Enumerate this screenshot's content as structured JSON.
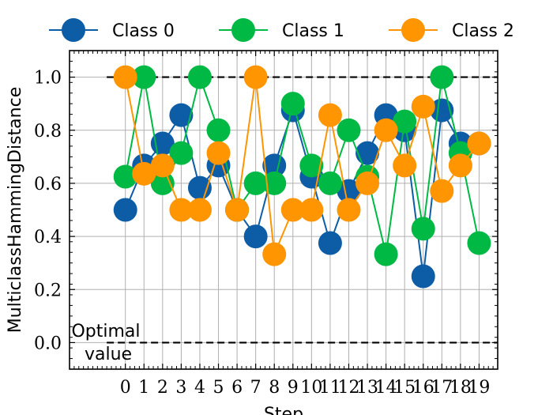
{
  "chart_data": {
    "type": "line",
    "title": "",
    "xlabel": "Step",
    "ylabel": "MulticlassHammingDistance",
    "xlim": [
      -3,
      20
    ],
    "ylim": [
      -0.1,
      1.1
    ],
    "x": [
      0,
      1,
      2,
      3,
      4,
      5,
      6,
      7,
      8,
      9,
      10,
      11,
      12,
      13,
      14,
      15,
      16,
      17,
      18,
      19
    ],
    "x_ticks": [
      "0",
      "1",
      "2",
      "3",
      "4",
      "5",
      "6",
      "7",
      "8",
      "9",
      "10",
      "11",
      "12",
      "13",
      "14",
      "15",
      "16",
      "17",
      "18",
      "19"
    ],
    "y_ticks": [
      "0.0",
      "0.2",
      "0.4",
      "0.6",
      "0.8",
      "1.0"
    ],
    "grid": true,
    "legend_position": "top",
    "series": [
      {
        "name": "Class 0",
        "color": "#0c5da5",
        "values": [
          0.5,
          0.667,
          0.75,
          0.857,
          0.583,
          0.667,
          0.5,
          0.4,
          0.667,
          0.875,
          0.625,
          0.375,
          0.571,
          0.714,
          0.857,
          0.8,
          0.25,
          0.875,
          0.75,
          0.75
        ]
      },
      {
        "name": "Class 1",
        "color": "#00b945",
        "values": [
          0.625,
          1.0,
          0.6,
          0.714,
          1.0,
          0.8,
          0.5,
          0.6,
          0.6,
          0.9,
          0.667,
          0.6,
          0.8,
          0.625,
          0.333,
          0.833,
          0.429,
          1.0,
          0.714,
          0.375
        ]
      },
      {
        "name": "Class 2",
        "color": "#ff9500",
        "values": [
          1.0,
          0.636,
          0.667,
          0.5,
          0.5,
          0.714,
          0.5,
          1.0,
          0.333,
          0.5,
          0.5,
          0.857,
          0.5,
          0.6,
          0.8,
          0.667,
          0.889,
          0.571,
          0.667,
          0.75
        ]
      }
    ],
    "reference_lines": [
      {
        "y": 1.0,
        "style": "dashed",
        "color": "#000000"
      },
      {
        "y": 0.0,
        "style": "dashed",
        "color": "#000000"
      }
    ],
    "annotation": {
      "line1": "Optimal",
      "line2": "value"
    }
  }
}
